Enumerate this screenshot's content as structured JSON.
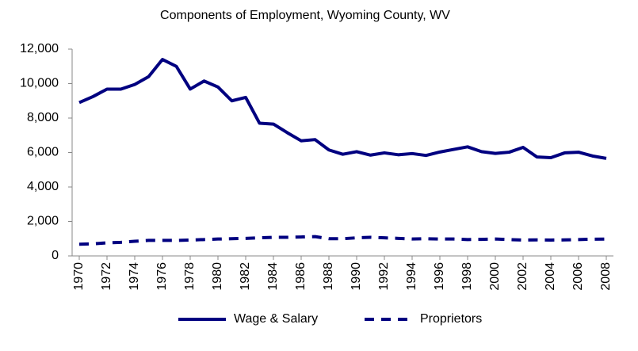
{
  "chart_data": {
    "type": "line",
    "title": "Components of Employment, Wyoming County, WV",
    "x": [
      1970,
      1971,
      1972,
      1973,
      1974,
      1975,
      1976,
      1977,
      1978,
      1979,
      1980,
      1981,
      1982,
      1983,
      1984,
      1985,
      1986,
      1987,
      1988,
      1989,
      1990,
      1991,
      1992,
      1993,
      1994,
      1995,
      1996,
      1997,
      1998,
      1999,
      2000,
      2001,
      2002,
      2003,
      2004,
      2005,
      2006,
      2007,
      2008
    ],
    "series": [
      {
        "name": "Wage & Salary",
        "color": "#000080",
        "dash": "solid",
        "values": [
          8900,
          9250,
          9680,
          9680,
          9950,
          10400,
          11400,
          11000,
          9680,
          10150,
          9800,
          9000,
          9200,
          7700,
          7650,
          7150,
          6680,
          6750,
          6150,
          5900,
          6050,
          5850,
          5980,
          5870,
          5940,
          5830,
          6030,
          6180,
          6330,
          6050,
          5950,
          6020,
          6300,
          5740,
          5700,
          5980,
          6020,
          5800,
          5660
        ]
      },
      {
        "name": "Proprietors",
        "color": "#000080",
        "dash": "dashed",
        "values": [
          680,
          700,
          760,
          790,
          850,
          900,
          900,
          900,
          920,
          950,
          980,
          1000,
          1020,
          1050,
          1080,
          1080,
          1100,
          1120,
          1000,
          1000,
          1050,
          1080,
          1050,
          1020,
          980,
          1000,
          980,
          980,
          950,
          960,
          980,
          950,
          920,
          930,
          920,
          930,
          950,
          970,
          980
        ]
      }
    ],
    "xlim": [
      1970,
      2008
    ],
    "xticks": [
      1970,
      1972,
      1974,
      1976,
      1978,
      1980,
      1982,
      1984,
      1986,
      1988,
      1990,
      1992,
      1994,
      1996,
      1998,
      2000,
      2002,
      2004,
      2006,
      2008
    ],
    "ylim": [
      0,
      12000
    ],
    "yticks": [
      0,
      {
        "value": 2000,
        "label": "2,000"
      },
      {
        "value": 4000,
        "label": "4,000"
      },
      {
        "value": 6000,
        "label": "6,000"
      },
      {
        "value": 8000,
        "label": "8,000"
      },
      {
        "value": 10000,
        "label": "10,000"
      },
      {
        "value": 12000,
        "label": "12,000"
      }
    ],
    "legend": "bottom"
  }
}
